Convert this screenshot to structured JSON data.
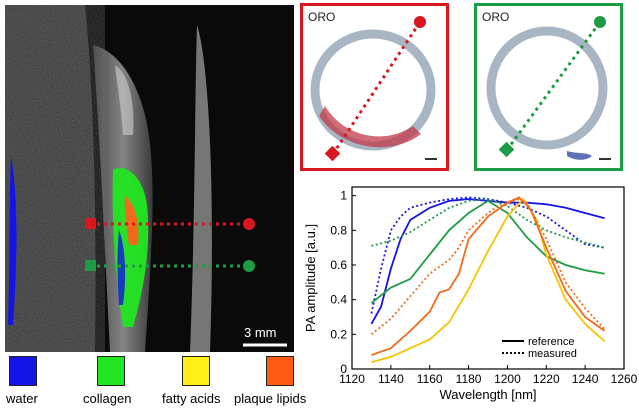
{
  "ultrasound": {
    "scalebar_label": "3 mm"
  },
  "histology": [
    {
      "label": "ORO",
      "frame_color": "#d8181e"
    },
    {
      "label": "ORO",
      "frame_color": "#1e9b45"
    }
  ],
  "legend": [
    {
      "label": "water",
      "color": "#1414e6"
    },
    {
      "label": "collagen",
      "color": "#22e622"
    },
    {
      "label": "fatty acids",
      "color": "#ffef14"
    },
    {
      "label": "plaque lipids",
      "color": "#ff5a14"
    }
  ],
  "chart_data": {
    "type": "line",
    "xlabel": "Wavelength [nm]",
    "ylabel": "PA amplitude [a.u.]",
    "xlim": [
      1120,
      1260
    ],
    "ylim": [
      0,
      1.05
    ],
    "xticks": [
      1120,
      1140,
      1160,
      1180,
      1200,
      1220,
      1240,
      1260
    ],
    "yticks": [
      0,
      0.2,
      0.4,
      0.6,
      0.8,
      1
    ],
    "legend_position": "bottom-right",
    "line_styles": [
      {
        "label": "reference",
        "style": "solid"
      },
      {
        "label": "measured",
        "style": "dotted"
      }
    ],
    "series": [
      {
        "color": "#1414e6",
        "style": "solid",
        "x": [
          1130,
          1135,
          1140,
          1145,
          1150,
          1160,
          1170,
          1180,
          1190,
          1200,
          1210,
          1220,
          1230,
          1240,
          1250
        ],
        "y": [
          0.26,
          0.36,
          0.58,
          0.75,
          0.86,
          0.93,
          0.97,
          0.98,
          0.97,
          0.96,
          0.96,
          0.95,
          0.93,
          0.9,
          0.87
        ]
      },
      {
        "color": "#1414e6",
        "style": "dotted",
        "x": [
          1130,
          1135,
          1140,
          1145,
          1150,
          1160,
          1170,
          1180,
          1190,
          1200,
          1210,
          1220,
          1230,
          1240,
          1250
        ],
        "y": [
          0.32,
          0.58,
          0.8,
          0.88,
          0.93,
          0.96,
          0.98,
          0.99,
          0.98,
          0.96,
          0.93,
          0.88,
          0.8,
          0.72,
          0.7
        ]
      },
      {
        "color": "#1e9b45",
        "style": "solid",
        "x": [
          1130,
          1140,
          1150,
          1160,
          1170,
          1180,
          1190,
          1200,
          1210,
          1220,
          1230,
          1240,
          1250
        ],
        "y": [
          0.38,
          0.47,
          0.52,
          0.66,
          0.8,
          0.9,
          0.97,
          0.9,
          0.76,
          0.65,
          0.6,
          0.57,
          0.55
        ]
      },
      {
        "color": "#1e9b45",
        "style": "dotted",
        "x": [
          1130,
          1140,
          1150,
          1160,
          1170,
          1180,
          1190,
          1200,
          1210,
          1220,
          1230,
          1240,
          1250
        ],
        "y": [
          0.71,
          0.74,
          0.79,
          0.86,
          0.93,
          0.97,
          0.98,
          0.94,
          0.86,
          0.8,
          0.76,
          0.73,
          0.7
        ]
      },
      {
        "color": "#f5c400",
        "style": "solid",
        "x": [
          1130,
          1140,
          1150,
          1160,
          1170,
          1180,
          1190,
          1200,
          1208,
          1215,
          1220,
          1230,
          1240,
          1250
        ],
        "y": [
          0.04,
          0.07,
          0.12,
          0.17,
          0.27,
          0.46,
          0.68,
          0.88,
          0.98,
          0.86,
          0.66,
          0.4,
          0.26,
          0.16
        ]
      },
      {
        "color": "#f26a1b",
        "style": "solid",
        "x": [
          1130,
          1140,
          1150,
          1160,
          1165,
          1170,
          1175,
          1180,
          1190,
          1200,
          1206,
          1212,
          1220,
          1230,
          1240,
          1250
        ],
        "y": [
          0.08,
          0.12,
          0.22,
          0.33,
          0.44,
          0.46,
          0.55,
          0.75,
          0.88,
          0.96,
          0.99,
          0.92,
          0.7,
          0.45,
          0.3,
          0.22
        ]
      },
      {
        "color": "#f26a1b",
        "style": "dotted",
        "x": [
          1130,
          1140,
          1150,
          1160,
          1170,
          1175,
          1180,
          1190,
          1195,
          1200,
          1205,
          1210,
          1220,
          1230,
          1240,
          1250
        ],
        "y": [
          0.2,
          0.29,
          0.42,
          0.55,
          0.63,
          0.7,
          0.8,
          0.9,
          0.94,
          0.95,
          0.98,
          0.96,
          0.75,
          0.5,
          0.35,
          0.23
        ]
      }
    ]
  }
}
